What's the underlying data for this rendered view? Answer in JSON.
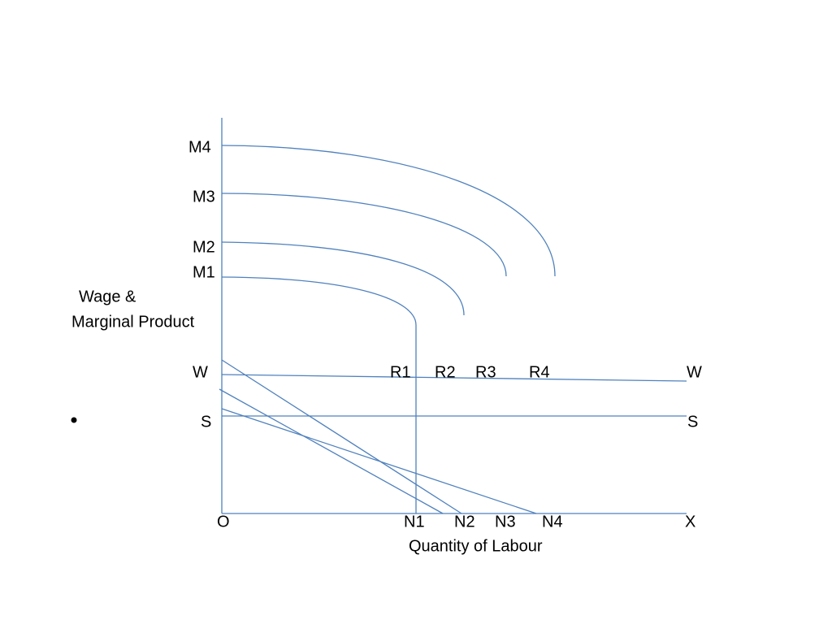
{
  "y_axis_label": [
    "Wage &",
    "Marginal Product"
  ],
  "curves": [
    "M4",
    "M3",
    "M2",
    "M1"
  ],
  "wage_line": {
    "left": "W",
    "right": "W"
  },
  "r_points": [
    "R1",
    "R2",
    "R3",
    "R4"
  ],
  "subsistence_line": {
    "left": "S",
    "right": "S"
  },
  "origin": "O",
  "n_points": [
    "N1",
    "N2",
    "N3",
    "N4"
  ],
  "x_end": "X",
  "x_axis_label": "Quantity of Labour"
}
